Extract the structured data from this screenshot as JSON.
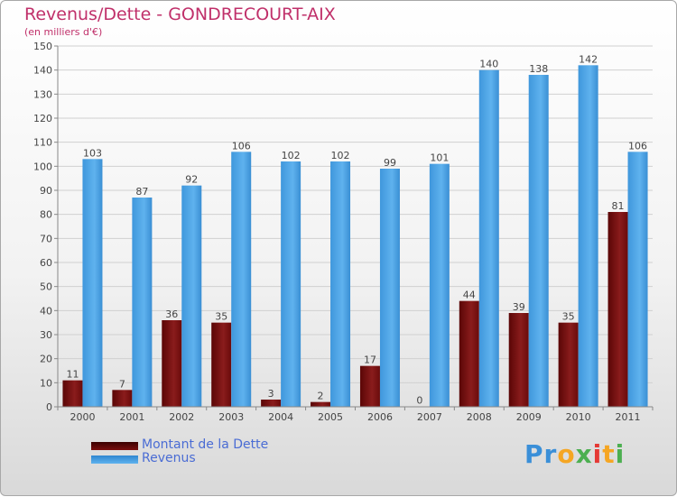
{
  "header": {
    "title": "Revenus/Dette - GONDRECOURT-AIX",
    "subtitle": "(en milliers d'€)"
  },
  "legend": {
    "items": [
      {
        "label": "Montant de la Dette",
        "color": "#7a0e0e"
      },
      {
        "label": "Revenus",
        "color": "#4aa3e6"
      }
    ]
  },
  "logo": {
    "letters": [
      {
        "ch": "P",
        "color": "#3a8fd8"
      },
      {
        "ch": "r",
        "color": "#3a8fd8"
      },
      {
        "ch": "o",
        "color": "#f5a623"
      },
      {
        "ch": "x",
        "color": "#4caf50"
      },
      {
        "ch": "i",
        "color": "#e53935"
      },
      {
        "ch": "t",
        "color": "#f5a623"
      },
      {
        "ch": "i",
        "color": "#4caf50"
      }
    ]
  },
  "chart_data": {
    "type": "bar",
    "title": "Revenus/Dette - GONDRECOURT-AIX",
    "subtitle": "(en milliers d'€)",
    "categories": [
      "2000",
      "2001",
      "2002",
      "2003",
      "2004",
      "2005",
      "2006",
      "2007",
      "2008",
      "2009",
      "2010",
      "2011"
    ],
    "series": [
      {
        "name": "Montant de la Dette",
        "color": "#7a0e0e",
        "values": [
          11,
          7,
          36,
          35,
          3,
          2,
          17,
          0,
          44,
          39,
          35,
          81
        ]
      },
      {
        "name": "Revenus",
        "color": "#4aa3e6",
        "values": [
          103,
          87,
          92,
          106,
          102,
          102,
          99,
          101,
          140,
          138,
          142,
          106
        ]
      }
    ],
    "ylim": [
      0,
      150
    ],
    "yticks": [
      0,
      10,
      20,
      30,
      40,
      50,
      60,
      70,
      80,
      90,
      100,
      110,
      120,
      130,
      140,
      150
    ],
    "grid": true,
    "legend_position": "bottom-left"
  }
}
